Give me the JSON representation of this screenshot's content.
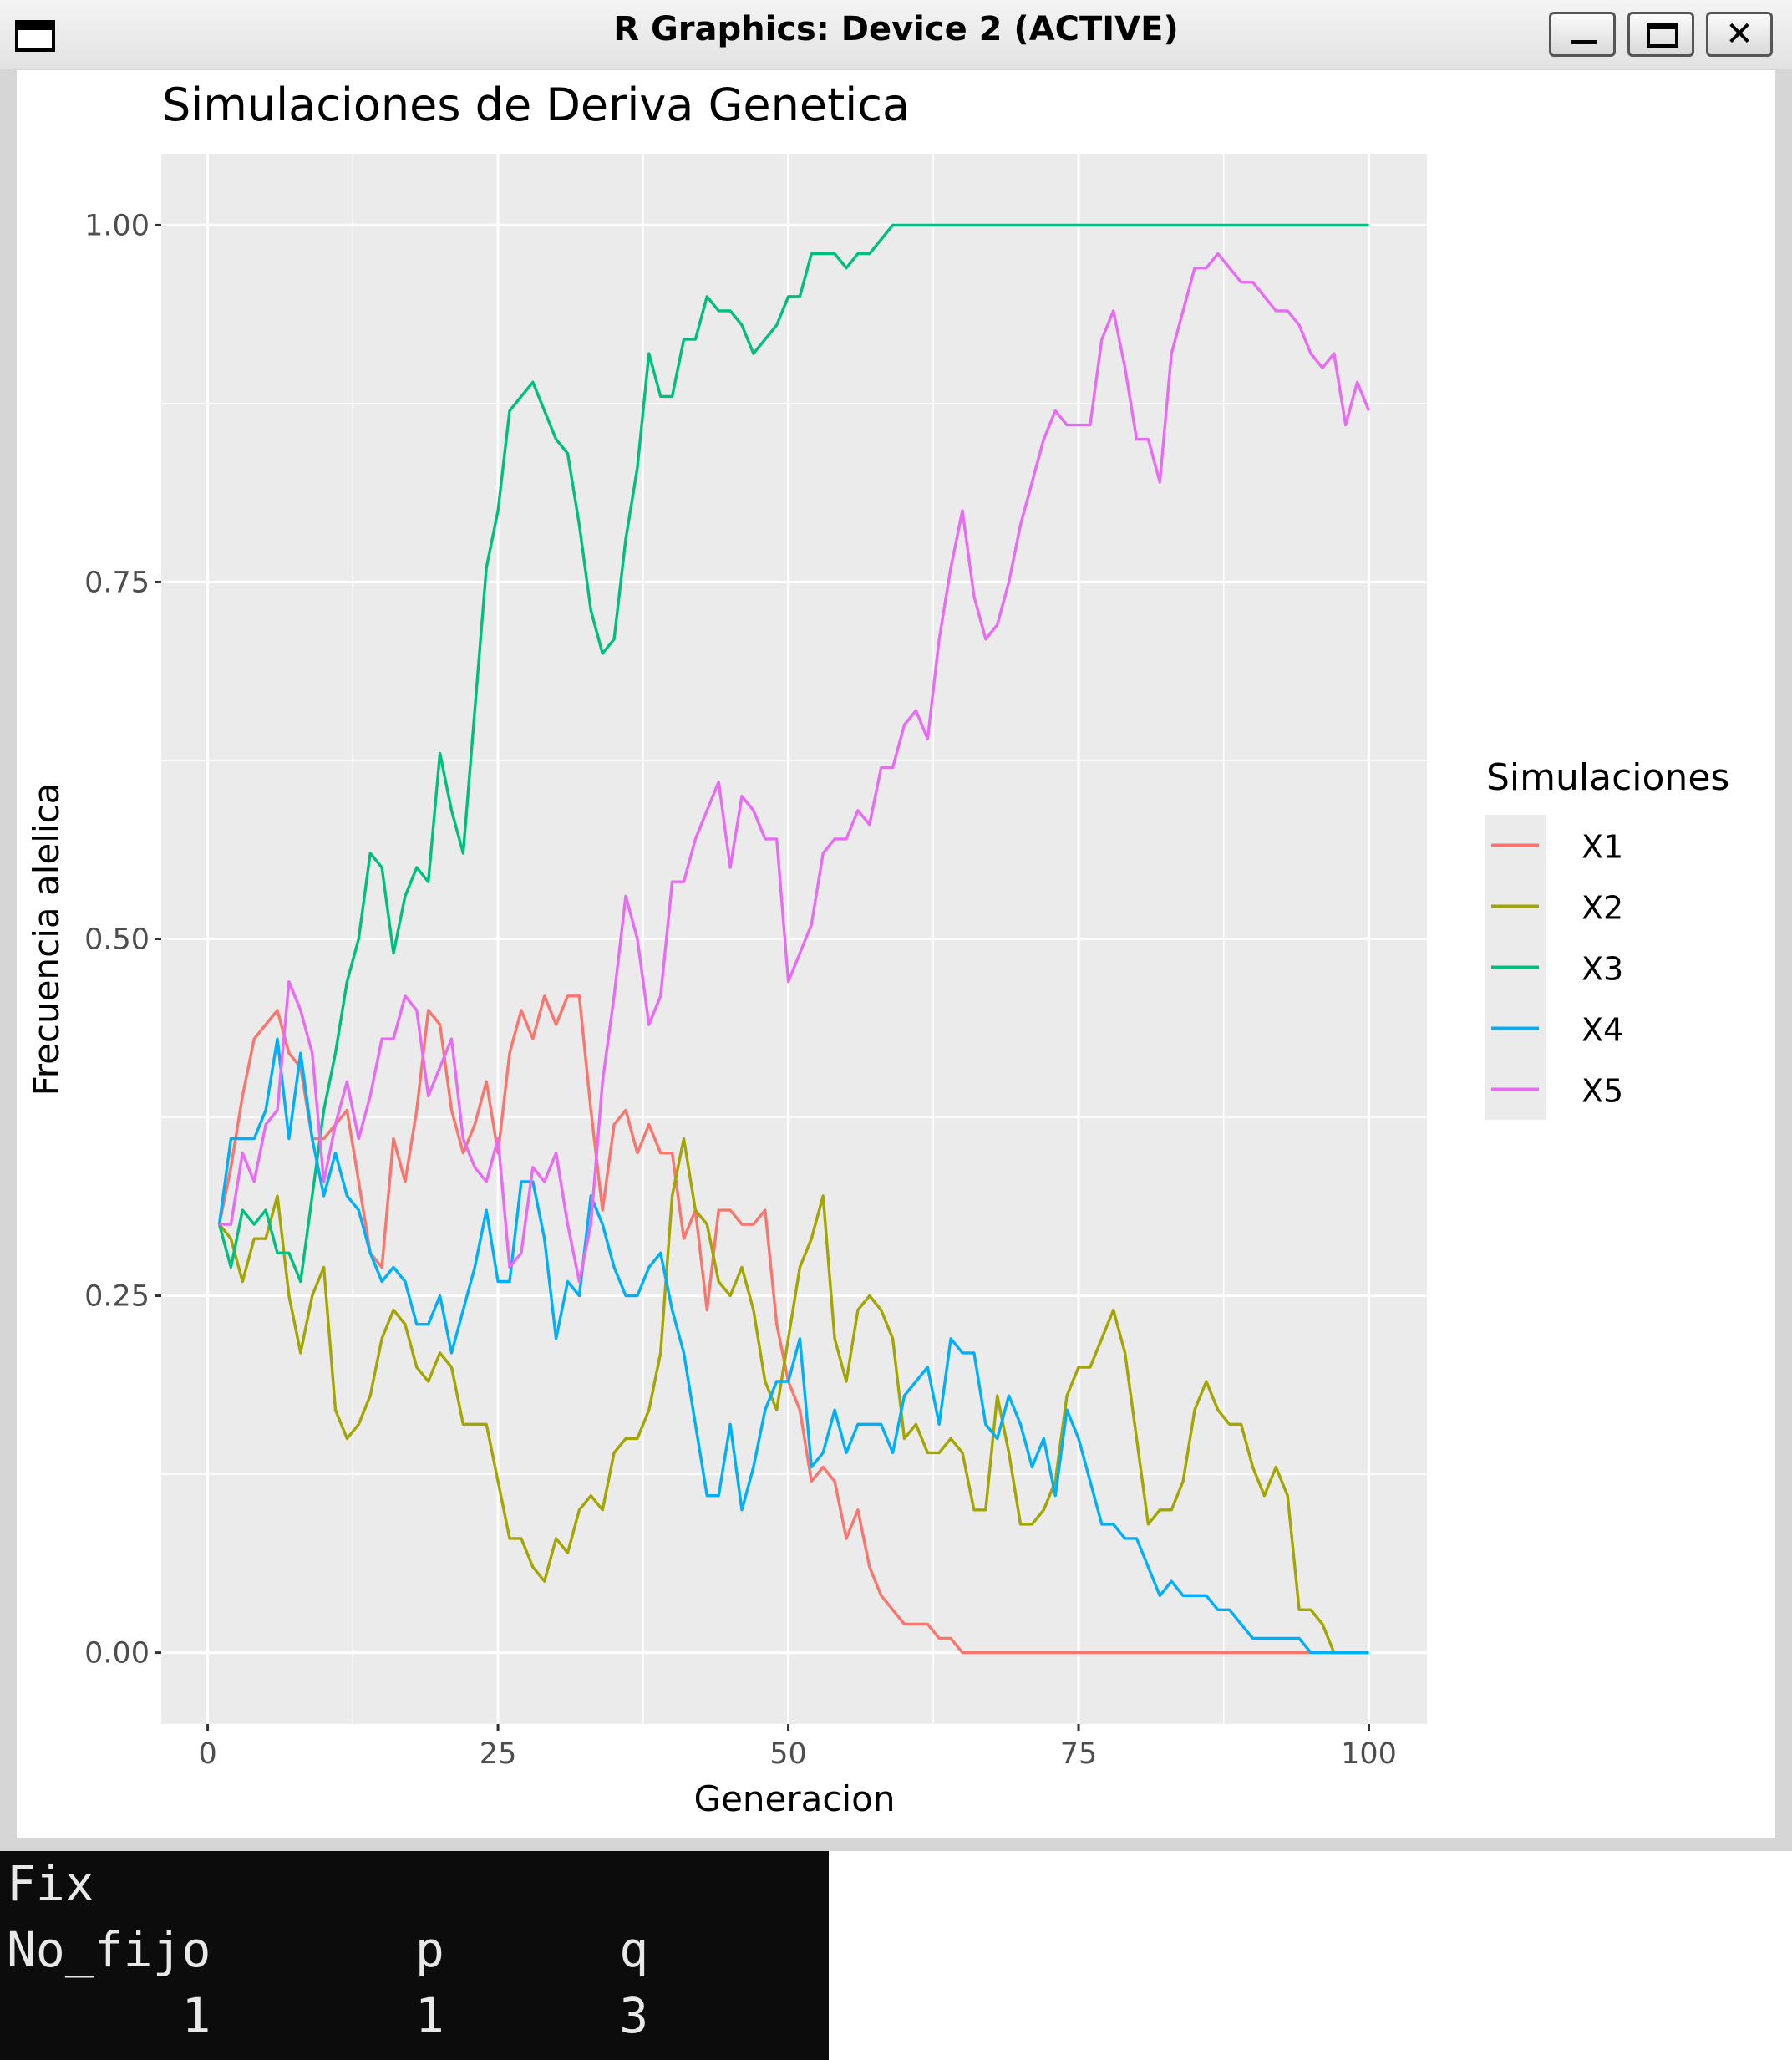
{
  "window": {
    "title": "R Graphics: Device 2 (ACTIVE)",
    "controls": [
      "minimize",
      "maximize",
      "close"
    ],
    "close_glyph": "✕"
  },
  "chart_data": {
    "type": "line",
    "title": "Simulaciones de Deriva Genetica",
    "xlabel": "Generacion",
    "ylabel": "Frecuencia alelica",
    "xlim": [
      -4,
      105
    ],
    "ylim": [
      -0.05,
      1.05
    ],
    "x_ticks": [
      0,
      25,
      50,
      75,
      100
    ],
    "x_tick_labels": [
      "0",
      "25",
      "50",
      "75",
      "100"
    ],
    "y_ticks": [
      0,
      0.25,
      0.5,
      0.75,
      1
    ],
    "y_tick_labels": [
      "0.00",
      "0.25",
      "0.50",
      "0.75",
      "1.00"
    ],
    "grid": true,
    "legend_title": "Simulaciones",
    "legend_position": "right",
    "x_start": 1,
    "series": [
      {
        "name": "X1",
        "color": "#F8766D",
        "values": [
          0.3,
          0.34,
          0.39,
          0.43,
          0.44,
          0.45,
          0.42,
          0.41,
          0.36,
          0.36,
          0.37,
          0.38,
          0.33,
          0.28,
          0.27,
          0.36,
          0.33,
          0.38,
          0.45,
          0.44,
          0.38,
          0.35,
          0.37,
          0.4,
          0.35,
          0.42,
          0.45,
          0.43,
          0.46,
          0.44,
          0.46,
          0.46,
          0.38,
          0.31,
          0.37,
          0.38,
          0.35,
          0.37,
          0.35,
          0.35,
          0.29,
          0.31,
          0.24,
          0.31,
          0.31,
          0.3,
          0.3,
          0.31,
          0.23,
          0.19,
          0.17,
          0.12,
          0.13,
          0.12,
          0.08,
          0.1,
          0.06,
          0.04,
          0.03,
          0.02,
          0.02,
          0.02,
          0.01,
          0.01,
          0.0,
          0.0,
          0.0,
          0.0,
          0.0,
          0.0,
          0.0,
          0.0,
          0.0,
          0.0,
          0.0,
          0.0,
          0.0,
          0.0,
          0.0,
          0.0,
          0.0,
          0.0,
          0.0,
          0.0,
          0.0,
          0.0,
          0.0,
          0.0,
          0.0,
          0.0,
          0.0,
          0.0,
          0.0,
          0.0,
          0.0,
          0.0,
          0.0,
          0.0,
          0.0,
          0.0
        ]
      },
      {
        "name": "X2",
        "color": "#A3A500",
        "values": [
          0.3,
          0.29,
          0.26,
          0.29,
          0.29,
          0.32,
          0.25,
          0.21,
          0.25,
          0.27,
          0.17,
          0.15,
          0.16,
          0.18,
          0.22,
          0.24,
          0.23,
          0.2,
          0.19,
          0.21,
          0.2,
          0.16,
          0.16,
          0.16,
          0.12,
          0.08,
          0.08,
          0.06,
          0.05,
          0.08,
          0.07,
          0.1,
          0.11,
          0.1,
          0.14,
          0.15,
          0.15,
          0.17,
          0.21,
          0.32,
          0.36,
          0.31,
          0.3,
          0.26,
          0.25,
          0.27,
          0.24,
          0.19,
          0.17,
          0.22,
          0.27,
          0.29,
          0.32,
          0.22,
          0.19,
          0.24,
          0.25,
          0.24,
          0.22,
          0.15,
          0.16,
          0.14,
          0.14,
          0.15,
          0.14,
          0.1,
          0.1,
          0.18,
          0.14,
          0.09,
          0.09,
          0.1,
          0.12,
          0.18,
          0.2,
          0.2,
          0.22,
          0.24,
          0.21,
          0.15,
          0.09,
          0.1,
          0.1,
          0.12,
          0.17,
          0.19,
          0.17,
          0.16,
          0.16,
          0.13,
          0.11,
          0.13,
          0.11,
          0.03,
          0.03,
          0.02,
          0.0,
          0.0,
          0.0,
          0.0
        ]
      },
      {
        "name": "X3",
        "color": "#00BF7D",
        "values": [
          0.3,
          0.27,
          0.31,
          0.3,
          0.31,
          0.28,
          0.28,
          0.26,
          0.32,
          0.38,
          0.42,
          0.47,
          0.5,
          0.56,
          0.55,
          0.49,
          0.53,
          0.55,
          0.54,
          0.63,
          0.59,
          0.56,
          0.66,
          0.76,
          0.8,
          0.87,
          0.88,
          0.89,
          0.87,
          0.85,
          0.84,
          0.79,
          0.73,
          0.7,
          0.71,
          0.78,
          0.83,
          0.91,
          0.88,
          0.88,
          0.92,
          0.92,
          0.95,
          0.94,
          0.94,
          0.93,
          0.91,
          0.92,
          0.93,
          0.95,
          0.95,
          0.98,
          0.98,
          0.98,
          0.97,
          0.98,
          0.98,
          0.99,
          1.0,
          1.0,
          1.0,
          1.0,
          1.0,
          1.0,
          1.0,
          1.0,
          1.0,
          1.0,
          1.0,
          1.0,
          1.0,
          1.0,
          1.0,
          1.0,
          1.0,
          1.0,
          1.0,
          1.0,
          1.0,
          1.0,
          1.0,
          1.0,
          1.0,
          1.0,
          1.0,
          1.0,
          1.0,
          1.0,
          1.0,
          1.0,
          1.0,
          1.0,
          1.0,
          1.0,
          1.0,
          1.0,
          1.0,
          1.0,
          1.0,
          1.0
        ]
      },
      {
        "name": "X4",
        "color": "#00B0F6",
        "values": [
          0.3,
          0.36,
          0.36,
          0.36,
          0.38,
          0.43,
          0.36,
          0.42,
          0.36,
          0.32,
          0.35,
          0.32,
          0.31,
          0.28,
          0.26,
          0.27,
          0.26,
          0.23,
          0.23,
          0.25,
          0.21,
          0.24,
          0.27,
          0.31,
          0.26,
          0.26,
          0.33,
          0.33,
          0.29,
          0.22,
          0.26,
          0.25,
          0.32,
          0.3,
          0.27,
          0.25,
          0.25,
          0.27,
          0.28,
          0.24,
          0.21,
          0.16,
          0.11,
          0.11,
          0.16,
          0.1,
          0.13,
          0.17,
          0.19,
          0.19,
          0.22,
          0.13,
          0.14,
          0.17,
          0.14,
          0.16,
          0.16,
          0.16,
          0.14,
          0.18,
          0.19,
          0.2,
          0.16,
          0.22,
          0.21,
          0.21,
          0.16,
          0.15,
          0.18,
          0.16,
          0.13,
          0.15,
          0.11,
          0.17,
          0.15,
          0.12,
          0.09,
          0.09,
          0.08,
          0.08,
          0.06,
          0.04,
          0.05,
          0.04,
          0.04,
          0.04,
          0.03,
          0.03,
          0.02,
          0.01,
          0.01,
          0.01,
          0.01,
          0.01,
          0.0,
          0.0,
          0.0,
          0.0,
          0.0,
          0.0
        ]
      },
      {
        "name": "X5",
        "color": "#E76BF3",
        "values": [
          0.3,
          0.3,
          0.35,
          0.33,
          0.37,
          0.38,
          0.47,
          0.45,
          0.42,
          0.33,
          0.37,
          0.4,
          0.36,
          0.39,
          0.43,
          0.43,
          0.46,
          0.45,
          0.39,
          0.41,
          0.43,
          0.36,
          0.34,
          0.33,
          0.36,
          0.27,
          0.28,
          0.34,
          0.33,
          0.35,
          0.3,
          0.26,
          0.3,
          0.4,
          0.46,
          0.53,
          0.5,
          0.44,
          0.46,
          0.54,
          0.54,
          0.57,
          0.59,
          0.61,
          0.55,
          0.6,
          0.59,
          0.57,
          0.57,
          0.47,
          0.49,
          0.51,
          0.56,
          0.57,
          0.57,
          0.59,
          0.58,
          0.62,
          0.62,
          0.65,
          0.66,
          0.64,
          0.71,
          0.76,
          0.8,
          0.74,
          0.71,
          0.72,
          0.75,
          0.79,
          0.82,
          0.85,
          0.87,
          0.86,
          0.86,
          0.86,
          0.92,
          0.94,
          0.9,
          0.85,
          0.85,
          0.82,
          0.91,
          0.94,
          0.97,
          0.97,
          0.98,
          0.97,
          0.96,
          0.96,
          0.95,
          0.94,
          0.94,
          0.93,
          0.91,
          0.9,
          0.91,
          0.86,
          0.89,
          0.87
        ]
      }
    ]
  },
  "console": {
    "lines": [
      "Fix",
      "No_fijo       p      q",
      "      1       1      3"
    ]
  }
}
